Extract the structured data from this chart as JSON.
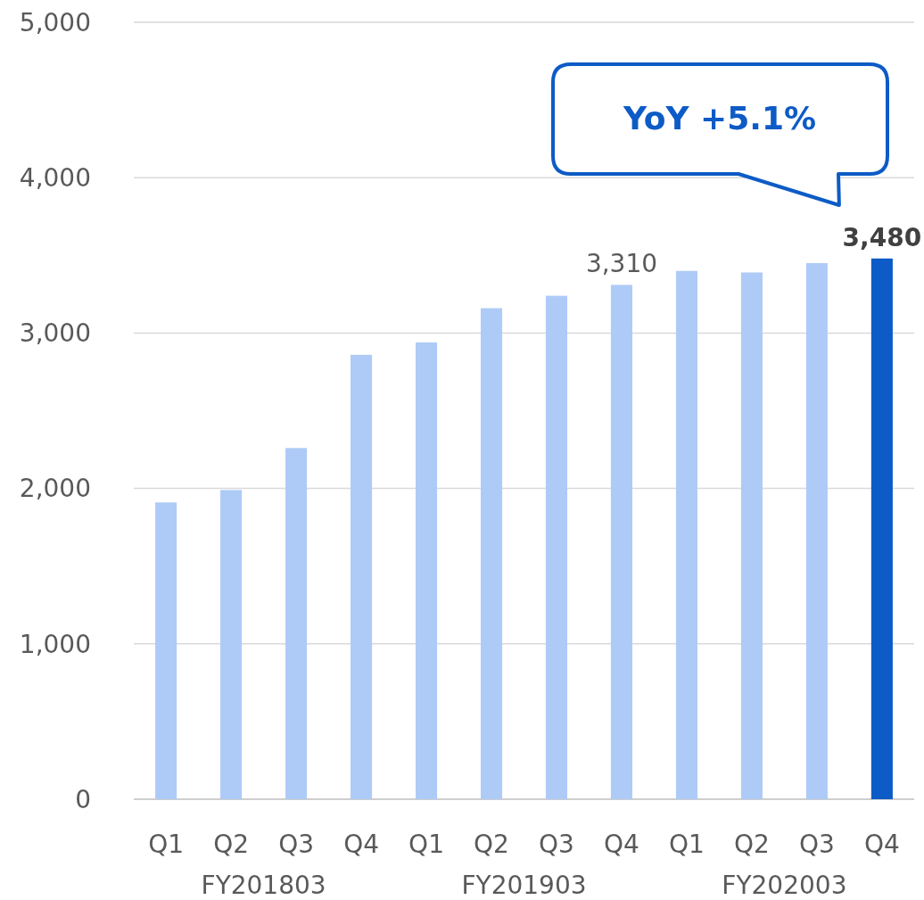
{
  "chart_data": {
    "type": "bar",
    "categories": [
      "Q1",
      "Q2",
      "Q3",
      "Q4",
      "Q1",
      "Q2",
      "Q3",
      "Q4",
      "Q1",
      "Q2",
      "Q3",
      "Q4"
    ],
    "values": [
      1910,
      1990,
      2260,
      2860,
      2940,
      3160,
      3240,
      3310,
      3400,
      3390,
      3450,
      3480
    ],
    "colors": [
      "#aecbf7",
      "#aecbf7",
      "#aecbf7",
      "#aecbf7",
      "#aecbf7",
      "#aecbf7",
      "#aecbf7",
      "#aecbf7",
      "#aecbf7",
      "#aecbf7",
      "#aecbf7",
      "#0d5bc6"
    ],
    "value_labels": [
      null,
      null,
      null,
      null,
      null,
      null,
      null,
      "3,310",
      null,
      null,
      null,
      "3,480"
    ],
    "ylim": [
      0,
      5000
    ],
    "yticks": [
      {
        "value": 0,
        "label": "0"
      },
      {
        "value": 1000,
        "label": "1,000"
      },
      {
        "value": 2000,
        "label": "2,000"
      },
      {
        "value": 3000,
        "label": "3,000"
      },
      {
        "value": 4000,
        "label": "4,000"
      },
      {
        "value": 5000,
        "label": "5,000"
      }
    ],
    "grid": "y",
    "annotations": [
      "FY201803",
      "FY201903",
      "FY202003",
      "YoY +5.1%"
    ]
  }
}
